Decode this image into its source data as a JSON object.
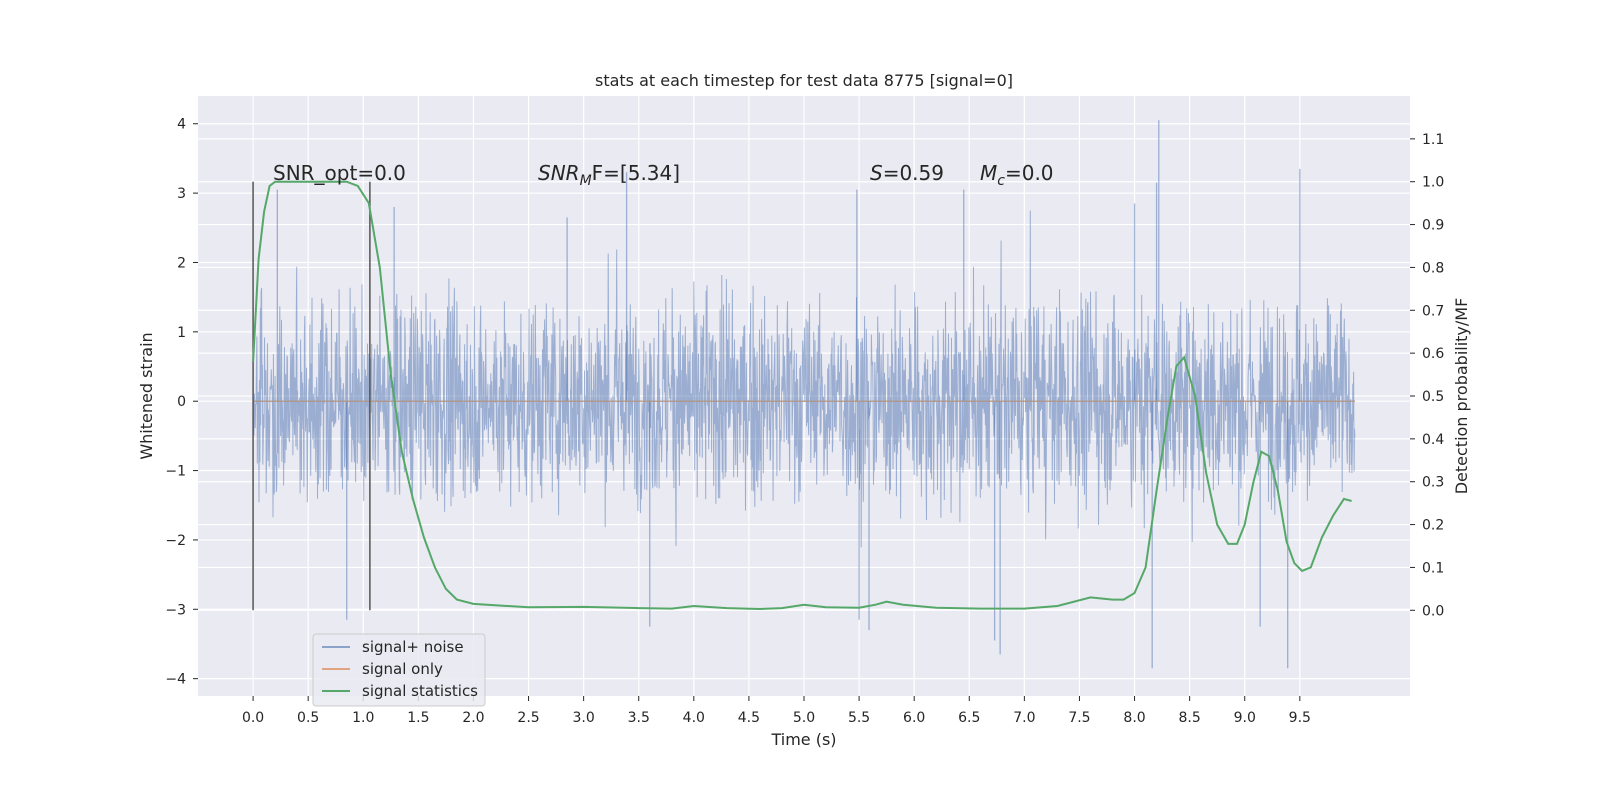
{
  "chart_data": {
    "type": "line",
    "title": "stats at each timestep for test data 8775 [signal=0]",
    "xlabel": "Time (s)",
    "ylabel": "Whitened strain",
    "y2label": "Detection probability/MF",
    "xlim": [
      -0.5,
      10.5
    ],
    "ylim": [
      -4.25,
      4.4
    ],
    "y2lim": [
      -0.2,
      1.2
    ],
    "x_ticks": [
      0.0,
      0.5,
      1.0,
      1.5,
      2.0,
      2.5,
      3.0,
      3.5,
      4.0,
      4.5,
      5.0,
      5.5,
      6.0,
      6.5,
      7.0,
      7.5,
      8.0,
      8.5,
      9.0,
      9.5
    ],
    "y_ticks": [
      -4,
      -3,
      -2,
      -1,
      0,
      1,
      2,
      3,
      4
    ],
    "y2_ticks": [
      0.0,
      0.1,
      0.2,
      0.3,
      0.4,
      0.5,
      0.6,
      0.7,
      0.8,
      0.9,
      1.0,
      1.1
    ],
    "grid": true,
    "legend_position": "bottom-left",
    "colors": {
      "background": "#eaeaf2",
      "grid": "#ffffff",
      "noise": "#4c72b0",
      "signal": "#dd8452",
      "statistics": "#55a868",
      "markers": "#555555"
    },
    "annotations": {
      "snr_opt": "SNR_opt=0.0",
      "snr_mf_base": "SNR",
      "snr_mf_sub": "M",
      "snr_mf_rest": "F=[5.34]",
      "s_label": "S",
      "s_value": "=0.59",
      "mc_base": "M",
      "mc_sub": "c",
      "mc_value": "=0.0"
    },
    "markers_x": [
      0.0,
      1.06
    ],
    "series": [
      {
        "name": "signal+ noise",
        "axis": "left",
        "style": "dense-noise",
        "x_range": [
          0.0,
          10.0
        ],
        "envelope_band": [
          -1.2,
          1.35
        ],
        "peaks": [
          {
            "x": 0.22,
            "y": 3.05
          },
          {
            "x": 1.28,
            "y": 2.8
          },
          {
            "x": 2.85,
            "y": 2.65
          },
          {
            "x": 3.39,
            "y": 3.3
          },
          {
            "x": 5.48,
            "y": 3.05
          },
          {
            "x": 6.45,
            "y": 3.05
          },
          {
            "x": 8.0,
            "y": 2.85
          },
          {
            "x": 8.2,
            "y": 3.15
          },
          {
            "x": 8.22,
            "y": 4.05
          },
          {
            "x": 9.5,
            "y": 3.35
          },
          {
            "x": 0.85,
            "y": -3.15
          },
          {
            "x": 3.6,
            "y": -3.25
          },
          {
            "x": 5.5,
            "y": -3.15
          },
          {
            "x": 5.59,
            "y": -3.3
          },
          {
            "x": 6.73,
            "y": -3.45
          },
          {
            "x": 6.78,
            "y": -3.65
          },
          {
            "x": 8.16,
            "y": -3.85
          },
          {
            "x": 9.14,
            "y": -3.25
          },
          {
            "x": 9.39,
            "y": -3.85
          }
        ]
      },
      {
        "name": "signal only",
        "axis": "left",
        "x": [
          0.0,
          10.0
        ],
        "values": [
          0.0,
          0.0
        ]
      },
      {
        "name": "signal statistics",
        "axis": "right",
        "x": [
          0.0,
          0.05,
          0.1,
          0.15,
          0.2,
          0.3,
          0.5,
          0.7,
          0.85,
          0.95,
          1.05,
          1.15,
          1.25,
          1.35,
          1.45,
          1.55,
          1.65,
          1.75,
          1.85,
          2.0,
          2.5,
          3.0,
          3.5,
          3.8,
          4.0,
          4.3,
          4.6,
          4.8,
          5.0,
          5.2,
          5.5,
          5.65,
          5.75,
          5.9,
          6.2,
          6.6,
          7.0,
          7.3,
          7.6,
          7.8,
          7.9,
          8.0,
          8.1,
          8.2,
          8.3,
          8.38,
          8.45,
          8.55,
          8.65,
          8.75,
          8.85,
          8.93,
          9.0,
          9.08,
          9.15,
          9.22,
          9.3,
          9.38,
          9.45,
          9.52,
          9.6,
          9.7,
          9.8,
          9.9,
          9.97
        ],
        "values": [
          0.58,
          0.82,
          0.93,
          0.99,
          1.0,
          1.0,
          1.0,
          1.0,
          1.0,
          0.99,
          0.95,
          0.8,
          0.55,
          0.37,
          0.26,
          0.17,
          0.1,
          0.05,
          0.025,
          0.015,
          0.007,
          0.008,
          0.005,
          0.004,
          0.01,
          0.005,
          0.003,
          0.005,
          0.013,
          0.007,
          0.006,
          0.013,
          0.02,
          0.013,
          0.006,
          0.004,
          0.004,
          0.01,
          0.03,
          0.025,
          0.025,
          0.04,
          0.1,
          0.28,
          0.45,
          0.57,
          0.59,
          0.5,
          0.32,
          0.2,
          0.155,
          0.155,
          0.2,
          0.3,
          0.37,
          0.36,
          0.28,
          0.16,
          0.11,
          0.092,
          0.1,
          0.17,
          0.22,
          0.26,
          0.255
        ]
      }
    ]
  }
}
